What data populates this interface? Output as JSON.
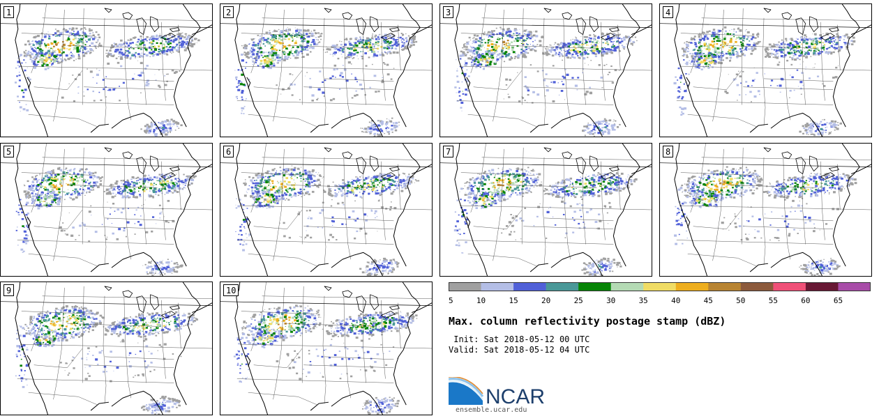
{
  "panels": [
    {
      "label": "1"
    },
    {
      "label": "2"
    },
    {
      "label": "3"
    },
    {
      "label": "4"
    },
    {
      "label": "5"
    },
    {
      "label": "6"
    },
    {
      "label": "7"
    },
    {
      "label": "8"
    },
    {
      "label": "9"
    },
    {
      "label": "10"
    }
  ],
  "legend": {
    "title": "Max. column reflectivity postage stamp (dBZ)",
    "init": " Init: Sat 2018-05-12 00 UTC",
    "valid": "Valid: Sat 2018-05-12 04 UTC",
    "ticks": [
      "5",
      "10",
      "15",
      "20",
      "25",
      "30",
      "35",
      "40",
      "45",
      "50",
      "55",
      "60",
      "65"
    ],
    "colors": [
      "#a0a0a0",
      "#b4bee6",
      "#5060d8",
      "#4a9898",
      "#068406",
      "#b4dab4",
      "#f0dc64",
      "#eeae1e",
      "#b88432",
      "#8c5a3c",
      "#f05078",
      "#681834",
      "#a84ca8"
    ]
  },
  "logo": {
    "text": "NCAR",
    "site": "ensemble.ucar.edu"
  }
}
